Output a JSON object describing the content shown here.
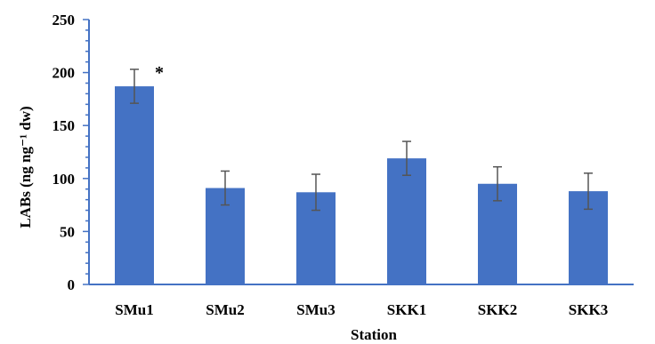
{
  "chart_data": {
    "type": "bar",
    "title": "",
    "xlabel": "Station",
    "ylabel": "LABs (ng ng⁻¹ dw)",
    "categories": [
      "SMu1",
      "SMu2",
      "SMu3",
      "SKK1",
      "SKK2",
      "SKK3"
    ],
    "values": [
      187,
      91,
      87,
      119,
      95,
      88
    ],
    "error": [
      16,
      16,
      17,
      16,
      16,
      17
    ],
    "annotations": [
      {
        "category": "SMu1",
        "text": "*"
      }
    ],
    "ylim": [
      0,
      250
    ],
    "yticks": [
      0,
      50,
      100,
      150,
      200,
      250
    ],
    "ytick_labels": [
      "0",
      "50",
      "100",
      "150",
      "200",
      "250"
    ],
    "grid": false,
    "legend": "none",
    "colors": {
      "bar": "#4472c4",
      "axis": "#4472c4",
      "error_bar": "#555555",
      "text": "#000000"
    }
  }
}
